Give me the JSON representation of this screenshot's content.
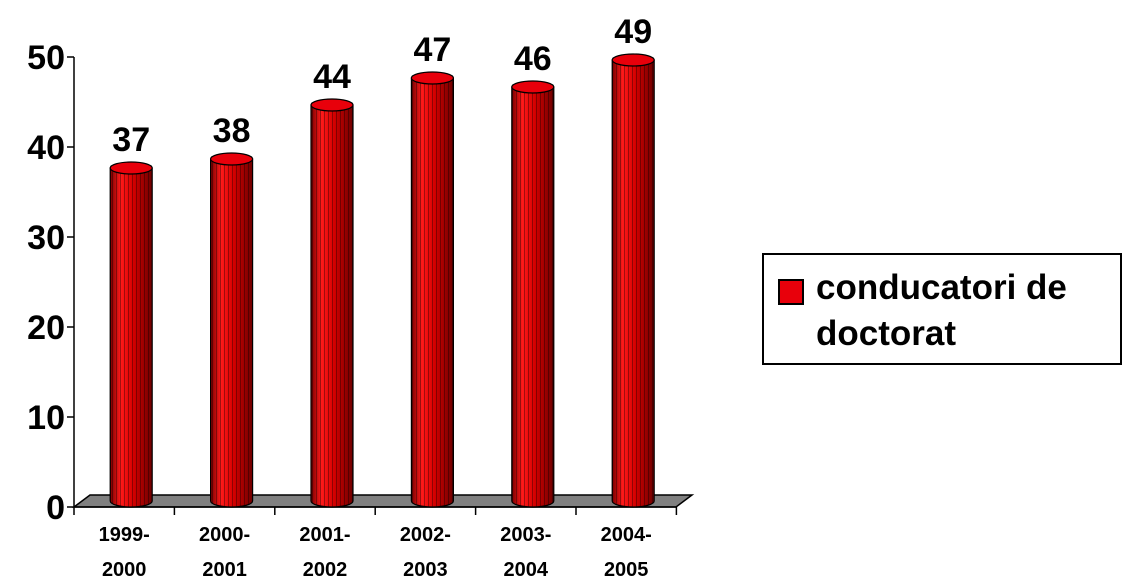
{
  "chart_data": {
    "type": "bar",
    "categories": [
      "1999-2000",
      "2000-2001",
      "2001-2002",
      "2002-2003",
      "2003-2004",
      "2004-2005"
    ],
    "category_lines": [
      [
        "1999-",
        "2000"
      ],
      [
        "2000-",
        "2001"
      ],
      [
        "2001-",
        "2002"
      ],
      [
        "2002-",
        "2003"
      ],
      [
        "2003-",
        "2004"
      ],
      [
        "2004-",
        "2005"
      ]
    ],
    "series": [
      {
        "name": "conducatori de doctorat",
        "values": [
          37,
          38,
          44,
          47,
          46,
          49
        ]
      }
    ],
    "data_labels": [
      "37",
      "38",
      "44",
      "47",
      "46",
      "49"
    ],
    "yticks": [
      "0",
      "10",
      "20",
      "30",
      "40",
      "50"
    ],
    "ylim": [
      0,
      50
    ],
    "bar_style": "3d-cylinder",
    "legend_position": "right",
    "grid": false
  },
  "legend": {
    "label": "conducatori de doctorat"
  },
  "colors": {
    "bar": "#e8000b",
    "bar_dark": "#8a0000",
    "floor": "#808080",
    "axis": "#000000"
  }
}
